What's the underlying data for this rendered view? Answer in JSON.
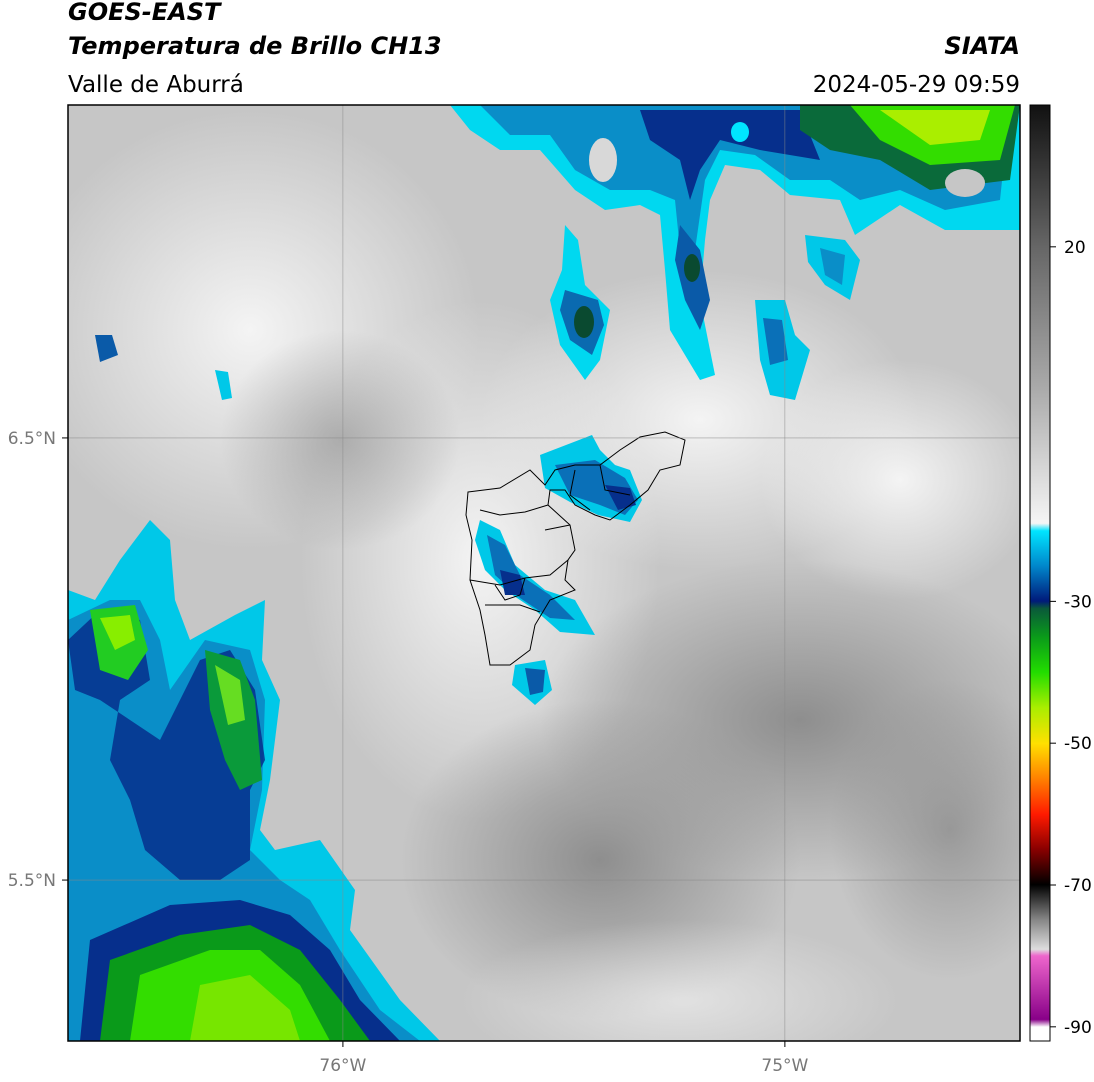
{
  "header": {
    "title": "GOES-EAST",
    "subtitle": "Temperatura de Brillo CH13",
    "region": "Valle de Aburrá",
    "source": "SIATA",
    "datetime": "2024-05-29 09:59"
  },
  "map": {
    "xlim": [
      -76.622,
      -74.468
    ],
    "ylim": [
      5.136,
      7.253
    ],
    "xticks": [
      {
        "value": -76,
        "label": "76°W"
      },
      {
        "value": -75,
        "label": "75°W"
      }
    ],
    "yticks": [
      {
        "value": 5.5,
        "label": "5.5°N"
      },
      {
        "value": 6.5,
        "label": "6.5°N"
      }
    ],
    "grid": true
  },
  "colorbar": {
    "lim": [
      -92,
      40
    ],
    "ticks": [
      20,
      -30,
      -50,
      -70,
      -90
    ]
  }
}
